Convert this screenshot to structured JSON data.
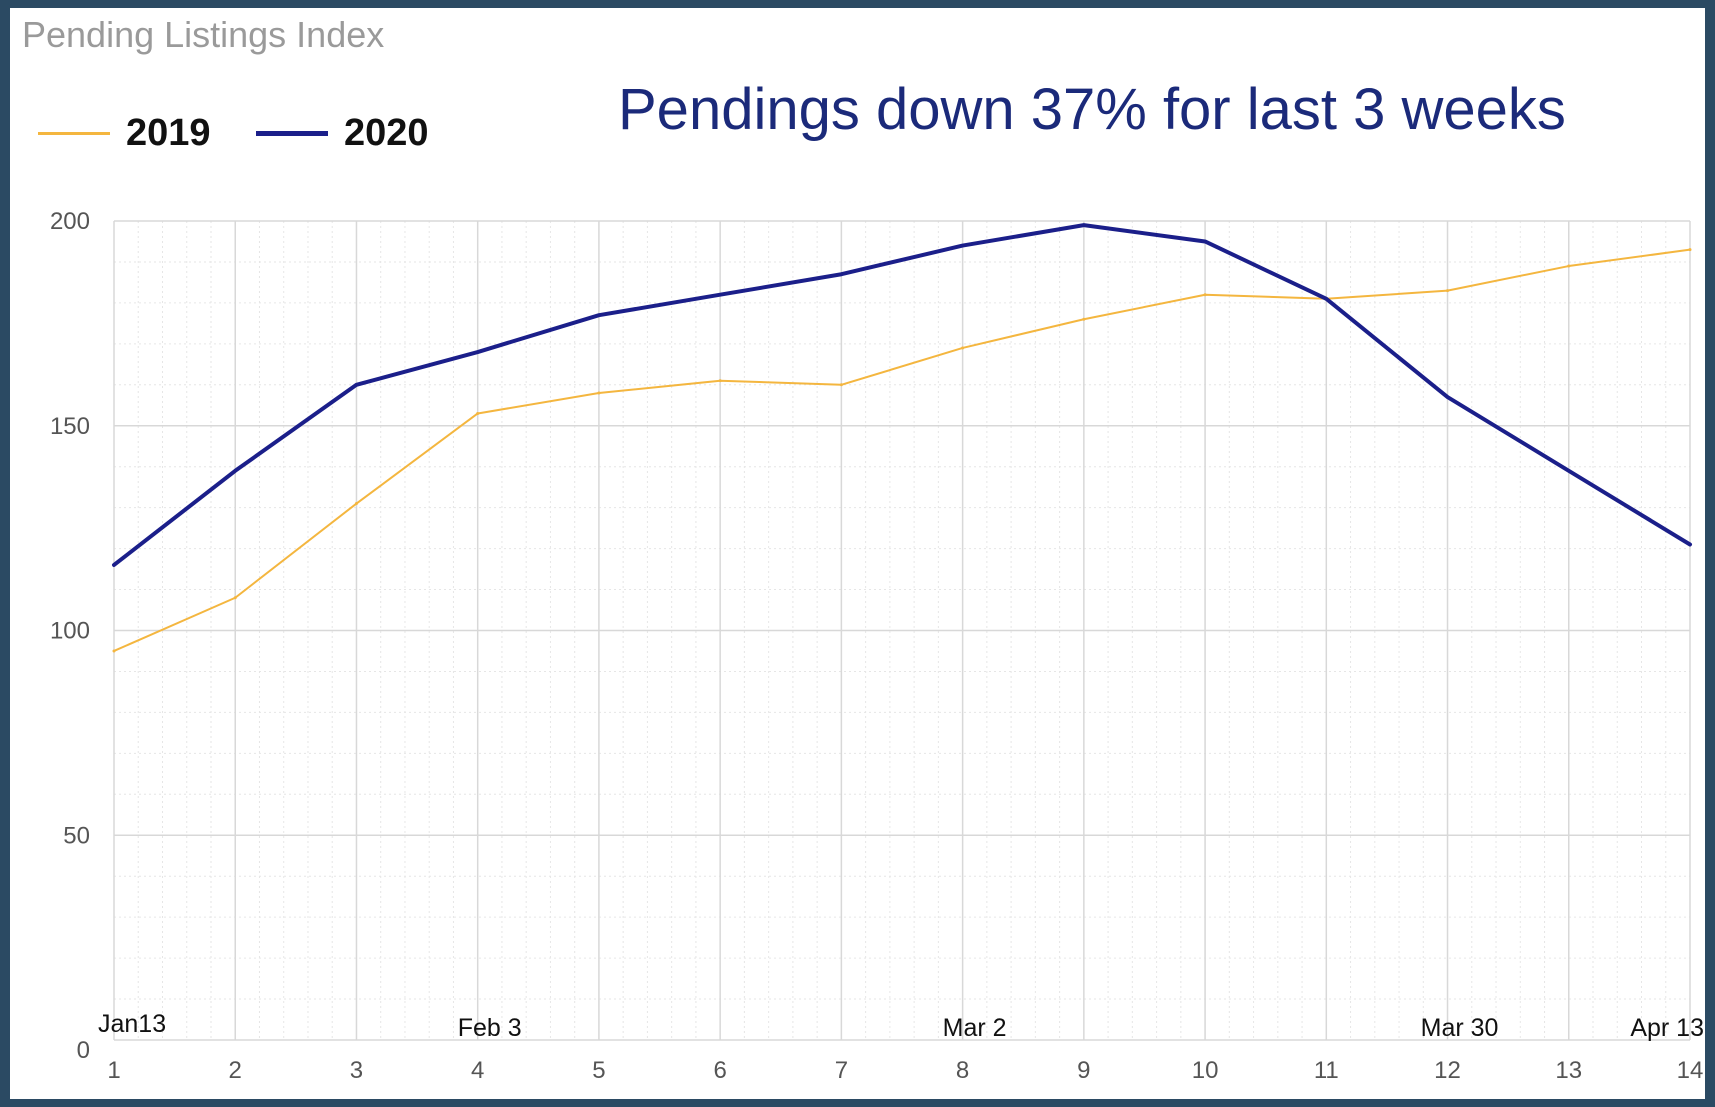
{
  "chart_data": {
    "type": "line",
    "title": "Pending Listings Index",
    "annotation": "Pendings down 37% for last 3 weeks",
    "x": [
      1,
      2,
      3,
      4,
      5,
      6,
      7,
      8,
      9,
      10,
      11,
      12,
      13,
      14
    ],
    "xtick_labels": [
      "1",
      "2",
      "3",
      "4",
      "5",
      "6",
      "7",
      "8",
      "9",
      "10",
      "11",
      "12",
      "13",
      "14"
    ],
    "date_labels": [
      {
        "x": 1,
        "label": "Jan13"
      },
      {
        "x": 4,
        "label": "Feb 3"
      },
      {
        "x": 8,
        "label": "Mar 2"
      },
      {
        "x": 12,
        "label": "Mar 30"
      },
      {
        "x": 14,
        "label": "Apr 13"
      }
    ],
    "yticks": [
      0,
      50,
      100,
      150,
      200
    ],
    "ytick_labels": [
      "0",
      "50",
      "100",
      "150",
      "200"
    ],
    "ylim": [
      0,
      200
    ],
    "xlim": [
      1,
      14
    ],
    "xlabel": "",
    "ylabel": "",
    "grid": true,
    "legend_position": "top-left",
    "series": [
      {
        "name": "2019",
        "color": "#f4b63f",
        "values": [
          95,
          108,
          131,
          153,
          158,
          161,
          160,
          169,
          176,
          182,
          181,
          183,
          189,
          193
        ]
      },
      {
        "name": "2020",
        "color": "#1b1f8a",
        "values": [
          116,
          139,
          160,
          168,
          177,
          182,
          187,
          194,
          199,
          195,
          181,
          157,
          139,
          121
        ]
      }
    ]
  }
}
